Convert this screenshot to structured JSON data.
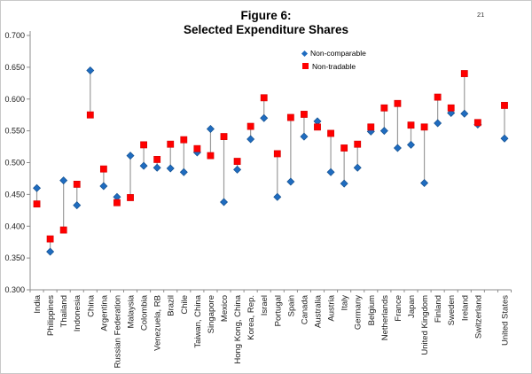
{
  "page": {
    "number": "21"
  },
  "title": {
    "line1": "Figure 6:",
    "line2": "Selected Expenditure Shares"
  },
  "legend": [
    {
      "label": "Non-comparable",
      "marker": "diamond",
      "color": "#1f6cc0"
    },
    {
      "label": "Non-tradable",
      "marker": "square",
      "color": "#ff0000"
    }
  ],
  "chart_data": {
    "type": "scatter",
    "title": "Figure 6: Selected Expenditure Shares",
    "xlabel": "",
    "ylabel": "",
    "ylim": [
      0.3,
      0.7
    ],
    "y_tick_step": 0.05,
    "y_ticks": [
      "0.700",
      "0.650",
      "0.600",
      "0.550",
      "0.500",
      "0.450",
      "0.400",
      "0.350",
      "0.300"
    ],
    "grid": false,
    "legend_position": "top-right-inside",
    "connector": "high-low-line",
    "categories": [
      "India",
      "Philippines",
      "Thailand",
      "Indonesia",
      "China",
      "Argentina",
      "Russian Federation",
      "Malaysia",
      "Colombia",
      "Venezuela, RB",
      "Brazil",
      "Chile",
      "Taiwan, China",
      "Singapore",
      "Mexico",
      "Hong Kong, China",
      "Korea, Rep.",
      "Israel",
      "Portugal",
      "Spain",
      "Canada",
      "Australia",
      "Austria",
      "Italy",
      "Germany",
      "Belgium",
      "Netherlands",
      "France",
      "Japan",
      "United Kingdom",
      "Finland",
      "Sweden",
      "Ireland",
      "Switzerland",
      "",
      "United States"
    ],
    "series": [
      {
        "name": "Non-comparable",
        "marker": "diamond",
        "color": "#1f6cc0",
        "stroke": "#15518f",
        "values": [
          0.46,
          0.36,
          0.472,
          0.433,
          0.645,
          0.463,
          0.446,
          0.511,
          0.495,
          0.492,
          0.491,
          0.485,
          0.516,
          0.553,
          0.438,
          0.489,
          0.537,
          0.57,
          0.446,
          0.47,
          0.541,
          0.565,
          0.485,
          0.467,
          0.492,
          0.549,
          0.55,
          0.523,
          0.528,
          0.468,
          0.562,
          0.578,
          0.577,
          0.56,
          null,
          0.538
        ]
      },
      {
        "name": "Non-tradable",
        "marker": "square",
        "color": "#ff0000",
        "stroke": "#d40000",
        "values": [
          0.435,
          0.38,
          0.394,
          0.466,
          0.575,
          0.49,
          0.437,
          0.445,
          0.528,
          0.505,
          0.529,
          0.536,
          0.522,
          0.511,
          0.541,
          0.502,
          0.557,
          0.602,
          0.514,
          0.571,
          0.576,
          0.556,
          0.546,
          0.523,
          0.529,
          0.556,
          0.586,
          0.593,
          0.559,
          0.556,
          0.603,
          0.586,
          0.64,
          0.563,
          null,
          0.59
        ]
      }
    ],
    "colors": {
      "axis": "#8c8c8c",
      "tick_label": "#1a1a1a",
      "hilo_line": "#9b9b9b"
    }
  }
}
